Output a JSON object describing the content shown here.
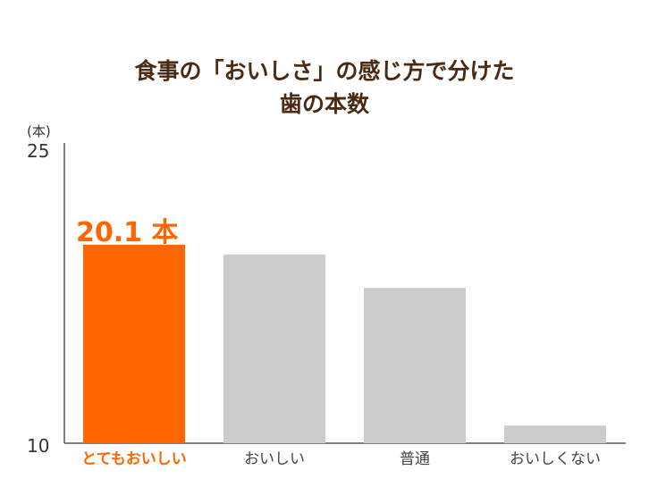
{
  "chart_data": {
    "type": "bar",
    "title": [
      "食事の「おいしさ」の感じ方で分けた",
      "歯の本数"
    ],
    "unit": "(本)",
    "categories": [
      "とてもおいしい",
      "おいしい",
      "普通",
      "おいしくない"
    ],
    "values": [
      20.1,
      19.6,
      17.9,
      10.9
    ],
    "ylim": [
      10,
      25
    ],
    "yticks": [
      "25",
      "10"
    ],
    "highlight_index": 0,
    "highlight_label": "20.1 本",
    "colors": {
      "highlight": "#ff6600",
      "bar": "#cccccc",
      "title": "#4a2a12",
      "axis": "#555555"
    }
  }
}
